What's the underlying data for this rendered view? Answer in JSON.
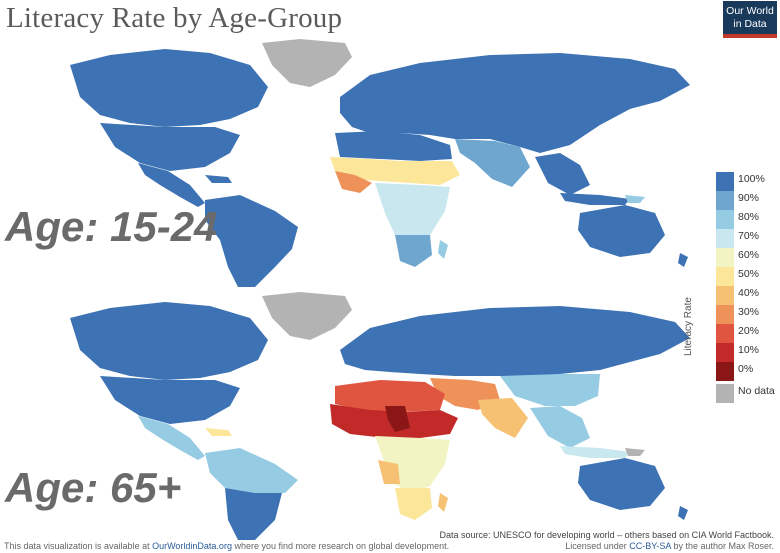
{
  "title": "Literacy Rate by Age-Group",
  "logo": {
    "line1": "Our World",
    "line2": "in Data"
  },
  "panels": [
    {
      "label": "Age: 15-24"
    },
    {
      "label": "Age: 65+"
    }
  ],
  "legend": {
    "title": "Literacy Rate",
    "items": [
      {
        "label": "100%",
        "color": "#3d72b4"
      },
      {
        "label": "90%",
        "color": "#6fa6cf"
      },
      {
        "label": "80%",
        "color": "#95cbe3"
      },
      {
        "label": "70%",
        "color": "#c8e7ef"
      },
      {
        "label": "60%",
        "color": "#f2f4c4"
      },
      {
        "label": "50%",
        "color": "#fbe69a"
      },
      {
        "label": "40%",
        "color": "#f7c173"
      },
      {
        "label": "30%",
        "color": "#ef9259"
      },
      {
        "label": "20%",
        "color": "#e0553f"
      },
      {
        "label": "10%",
        "color": "#c22a2a"
      },
      {
        "label": "0%",
        "color": "#8a1616"
      },
      {
        "label": "No data",
        "color": "#b3b3b3"
      }
    ]
  },
  "footer": {
    "left_prefix": "This data visualization is available at ",
    "left_link": "OurWorldinData.org",
    "left_suffix": " where you find more research on global development.",
    "source": "Data source: UNESCO for developing world – others based on CIA World Factbook.",
    "license_prefix": "Licensed under ",
    "license_link": "CC-BY-SA",
    "license_suffix": " by the author Max Roser."
  }
}
